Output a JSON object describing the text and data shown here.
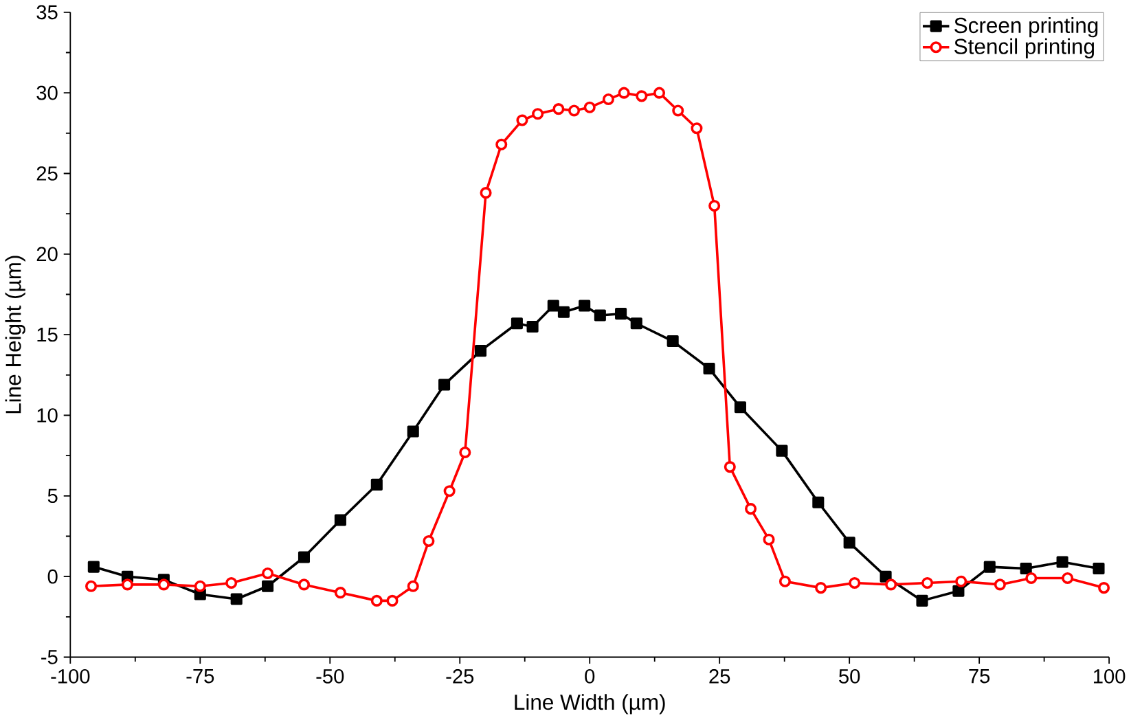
{
  "chart_data": {
    "type": "line",
    "xlabel": "Line Width (µm)",
    "ylabel": "Line Height (µm)",
    "xlim": [
      -100,
      100
    ],
    "ylim": [
      -5,
      35
    ],
    "xticks": [
      -100,
      -75,
      -50,
      -25,
      0,
      25,
      50,
      75,
      100
    ],
    "yticks": [
      -5,
      0,
      5,
      10,
      15,
      20,
      25,
      30,
      35
    ],
    "grid": false,
    "legend": "top right",
    "series": [
      {
        "name": "Screen printing",
        "color": "#000000",
        "marker": "square",
        "x": [
          -95.5,
          -89,
          -82,
          -75,
          -68,
          -62,
          -55,
          -48,
          -41,
          -34,
          -28,
          -21,
          -14,
          -11,
          -7,
          -5,
          -1,
          2,
          6,
          9,
          16,
          23,
          29,
          37,
          44,
          50,
          57,
          64,
          71,
          77,
          84,
          91,
          98
        ],
        "values": [
          0.6,
          0.0,
          -0.2,
          -1.1,
          -1.4,
          -0.6,
          1.2,
          3.5,
          5.7,
          9.0,
          11.9,
          14.0,
          15.7,
          15.5,
          16.8,
          16.4,
          16.8,
          16.2,
          16.3,
          15.7,
          14.6,
          12.9,
          10.5,
          7.8,
          4.6,
          2.1,
          0.0,
          -1.5,
          -0.9,
          0.6,
          0.5,
          0.9,
          0.5
        ]
      },
      {
        "name": "Stencil printing",
        "color": "#ff0000",
        "marker": "circle",
        "x": [
          -96,
          -89,
          -82,
          -75,
          -69,
          -62,
          -55,
          -48,
          -41,
          -38,
          -34,
          -31,
          -27,
          -24,
          -20,
          -17,
          -13,
          -10,
          -6,
          -3,
          0,
          3.6,
          6.6,
          10,
          13.4,
          17,
          20.6,
          24,
          27,
          31,
          34.5,
          37.6,
          44.5,
          51,
          58,
          65,
          71.5,
          79,
          85,
          92,
          99
        ],
        "values": [
          -0.6,
          -0.5,
          -0.5,
          -0.6,
          -0.4,
          0.2,
          -0.5,
          -1.0,
          -1.5,
          -1.5,
          -0.6,
          2.2,
          5.3,
          7.7,
          23.8,
          26.8,
          28.3,
          28.7,
          29.0,
          28.9,
          29.1,
          29.6,
          30.0,
          29.8,
          30.0,
          28.9,
          27.8,
          23.0,
          6.8,
          4.2,
          2.3,
          -0.3,
          -0.7,
          -0.4,
          -0.5,
          -0.4,
          -0.3,
          -0.5,
          -0.1,
          -0.1,
          -0.7
        ]
      }
    ]
  }
}
